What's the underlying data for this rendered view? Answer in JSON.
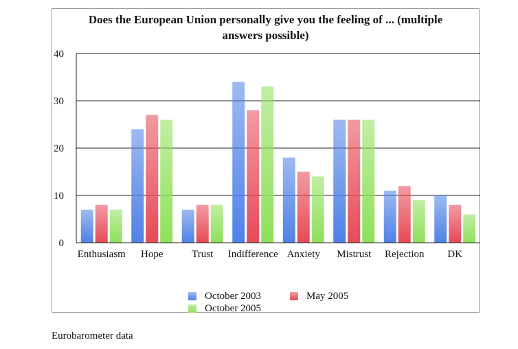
{
  "chart_data": {
    "type": "bar",
    "title_lines": [
      "Does the European Union personally give you the feeling of ... (multiple",
      "answers possible)"
    ],
    "categories": [
      "Enthusiasm",
      "Hope",
      "Trust",
      "Indifference",
      "Anxiety",
      "Mistrust",
      "Rejection",
      "DK"
    ],
    "series": [
      {
        "name": "October 2003",
        "color": "#4f81e6",
        "values": [
          7,
          24,
          7,
          34,
          18,
          26,
          11,
          10
        ]
      },
      {
        "name": "May 2005",
        "color": "#e64a57",
        "values": [
          8,
          27,
          8,
          28,
          15,
          26,
          12,
          8
        ]
      },
      {
        "name": "October 2005",
        "color": "#8fe05a",
        "values": [
          7,
          26,
          8,
          33,
          14,
          26,
          9,
          6
        ]
      }
    ],
    "ylim": [
      0,
      40
    ],
    "yticks": [
      0,
      10,
      20,
      30,
      40
    ],
    "grid": true,
    "legend_position": "bottom"
  },
  "source_note": "Eurobarometer data"
}
